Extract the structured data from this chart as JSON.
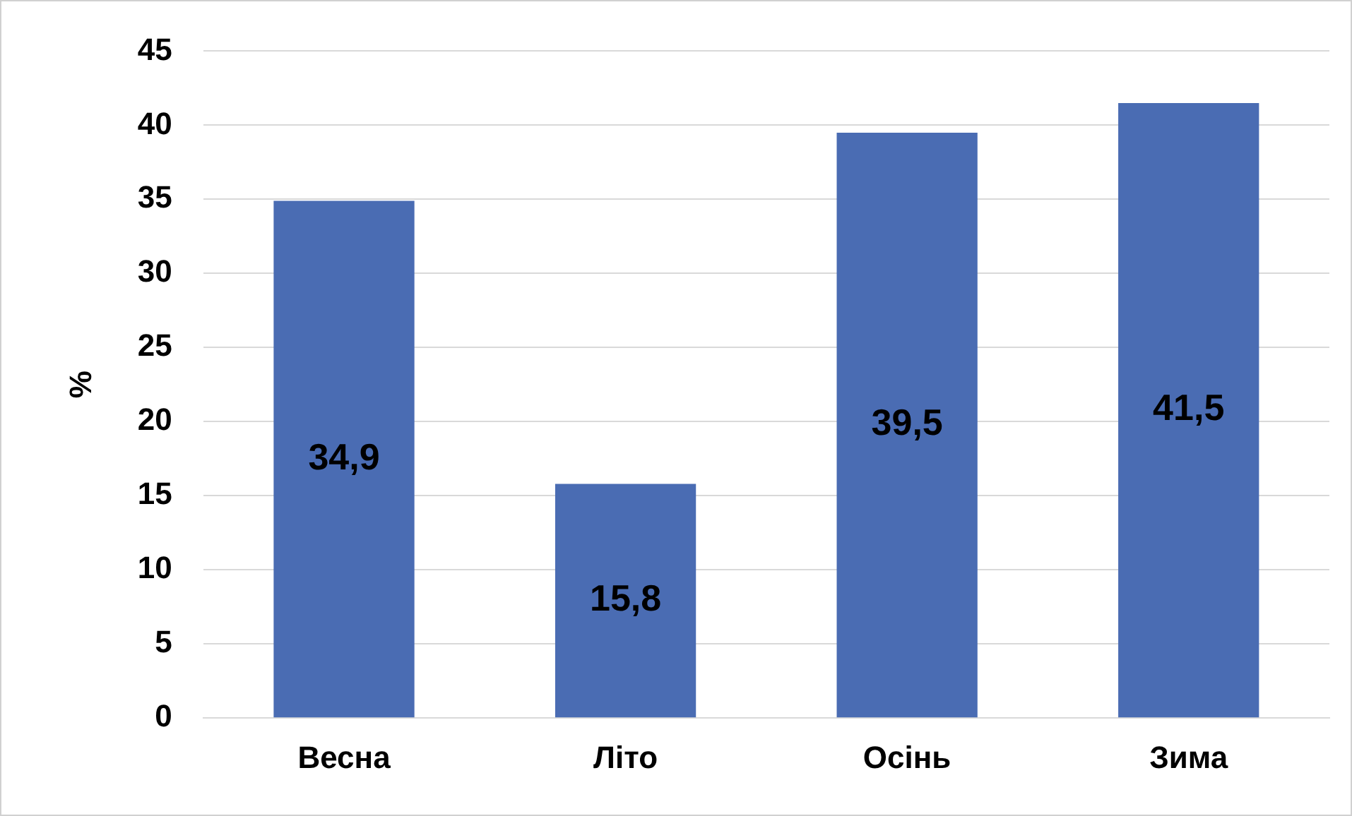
{
  "chart_data": {
    "type": "bar",
    "ylabel": "%",
    "categories": [
      "Весна",
      "Літо",
      "Осінь",
      "Зима"
    ],
    "values": [
      34.9,
      15.8,
      39.5,
      41.5
    ],
    "value_labels": [
      "34,9",
      "15,8",
      "39,5",
      "41,5"
    ],
    "color": "#4a6cb3",
    "ylim": [
      0,
      45
    ],
    "yticks": [
      0,
      5,
      10,
      15,
      20,
      25,
      30,
      35,
      40,
      45
    ],
    "grid": "y",
    "legend": false
  }
}
